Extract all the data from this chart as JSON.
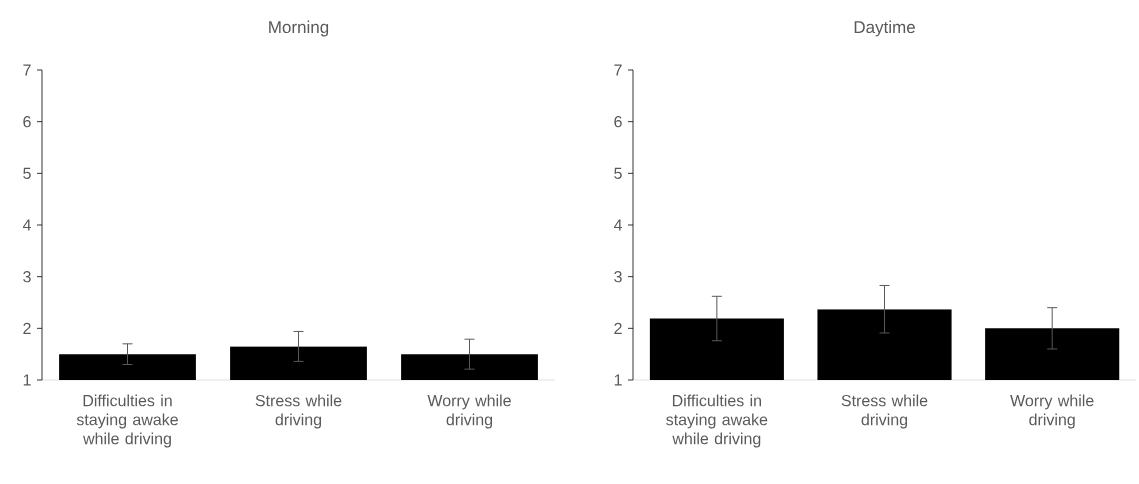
{
  "chart_data": [
    {
      "type": "bar",
      "title": "Morning",
      "categories": [
        "Difficulties in staying awake while driving",
        "Stress while driving",
        "Worry while driving"
      ],
      "values": [
        1.5,
        1.65,
        1.5
      ],
      "errors": [
        0.2,
        0.29,
        0.29
      ],
      "color": "#000000",
      "ylim": [
        1,
        7
      ],
      "yticks": [
        1,
        2,
        3,
        4,
        5,
        6,
        7
      ]
    },
    {
      "type": "bar",
      "title": "Daytime",
      "categories": [
        "Difficulties in staying awake while driving",
        "Stress while driving",
        "Worry while driving"
      ],
      "values": [
        2.19,
        2.37,
        2.0
      ],
      "errors": [
        0.43,
        0.46,
        0.4
      ],
      "color": "#000000",
      "ylim": [
        1,
        7
      ],
      "yticks": [
        1,
        2,
        3,
        4,
        5,
        6,
        7
      ]
    }
  ]
}
